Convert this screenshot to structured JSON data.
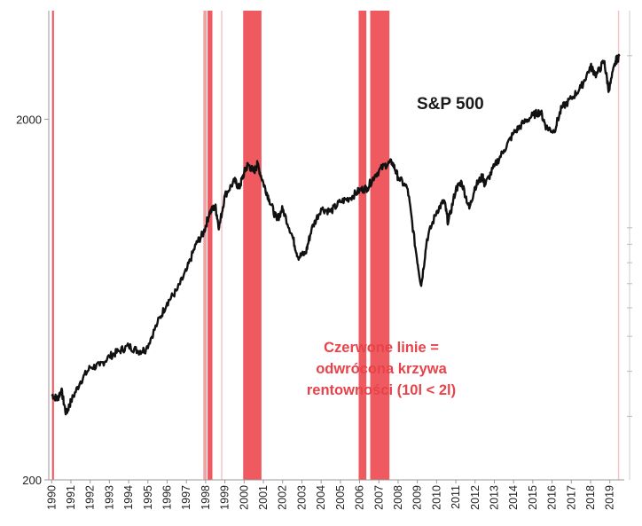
{
  "chart_data": {
    "type": "line",
    "title": "S&P 500",
    "annotation": [
      "Czerwone linie =",
      "odwrócona krzywa",
      "rentowności (10l < 2l)"
    ],
    "y_scale": "log",
    "ylim": [
      200,
      4000
    ],
    "y_ticks": [
      200,
      2000
    ],
    "y_tick_labels": [
      "200",
      "2000"
    ],
    "x_ticks": [
      "1990",
      "1991",
      "1992",
      "1993",
      "1994",
      "1995",
      "1996",
      "1997",
      "1998",
      "1999",
      "2000",
      "2001",
      "2002",
      "2003",
      "2004",
      "2005",
      "2006",
      "2007",
      "2008",
      "2009",
      "2010",
      "2011",
      "2012",
      "2013",
      "2014",
      "2015",
      "2016",
      "2017",
      "2018",
      "2019"
    ],
    "grid": false,
    "inversion_periods": [
      {
        "start": 1990.02,
        "end": 1990.12,
        "shade": "strong"
      },
      {
        "start": 1997.88,
        "end": 1998.05,
        "shade": "light"
      },
      {
        "start": 1998.1,
        "end": 1998.35,
        "shade": "strong"
      },
      {
        "start": 1998.8,
        "end": 1998.86,
        "shade": "faint"
      },
      {
        "start": 1999.95,
        "end": 2000.9,
        "shade": "strong"
      },
      {
        "start": 2005.95,
        "end": 2006.35,
        "shade": "strong"
      },
      {
        "start": 2006.55,
        "end": 2007.55,
        "shade": "strong"
      },
      {
        "start": 2019.42,
        "end": 2019.48,
        "shade": "faint"
      }
    ],
    "series": [
      {
        "values": [
          [
            1990.0,
            345
          ],
          [
            1990.3,
            335
          ],
          [
            1990.5,
            355
          ],
          [
            1990.75,
            305
          ],
          [
            1991.0,
            330
          ],
          [
            1991.5,
            375
          ],
          [
            1992.0,
            410
          ],
          [
            1992.5,
            415
          ],
          [
            1993.0,
            440
          ],
          [
            1993.5,
            455
          ],
          [
            1994.0,
            470
          ],
          [
            1994.5,
            455
          ],
          [
            1994.9,
            460
          ],
          [
            1995.5,
            545
          ],
          [
            1996.0,
            620
          ],
          [
            1996.5,
            670
          ],
          [
            1997.0,
            760
          ],
          [
            1997.5,
            900
          ],
          [
            1997.9,
            970
          ],
          [
            1998.2,
            1100
          ],
          [
            1998.5,
            1150
          ],
          [
            1998.7,
            1000
          ],
          [
            1999.0,
            1230
          ],
          [
            1999.5,
            1350
          ],
          [
            1999.75,
            1290
          ],
          [
            2000.0,
            1420
          ],
          [
            2000.2,
            1500
          ],
          [
            2000.5,
            1430
          ],
          [
            2000.7,
            1500
          ],
          [
            2001.0,
            1330
          ],
          [
            2001.3,
            1200
          ],
          [
            2001.7,
            1050
          ],
          [
            2002.0,
            1130
          ],
          [
            2002.5,
            950
          ],
          [
            2002.8,
            830
          ],
          [
            2003.2,
            850
          ],
          [
            2003.5,
            990
          ],
          [
            2004.0,
            1130
          ],
          [
            2004.5,
            1110
          ],
          [
            2005.0,
            1180
          ],
          [
            2005.5,
            1210
          ],
          [
            2006.0,
            1270
          ],
          [
            2006.4,
            1290
          ],
          [
            2006.8,
            1400
          ],
          [
            2007.3,
            1490
          ],
          [
            2007.7,
            1520
          ],
          [
            2008.0,
            1380
          ],
          [
            2008.5,
            1280
          ],
          [
            2008.9,
            880
          ],
          [
            2009.2,
            690
          ],
          [
            2009.5,
            930
          ],
          [
            2010.0,
            1110
          ],
          [
            2010.4,
            1190
          ],
          [
            2010.6,
            1030
          ],
          [
            2011.0,
            1280
          ],
          [
            2011.3,
            1340
          ],
          [
            2011.7,
            1130
          ],
          [
            2012.0,
            1300
          ],
          [
            2012.4,
            1390
          ],
          [
            2012.5,
            1310
          ],
          [
            2013.0,
            1480
          ],
          [
            2013.5,
            1640
          ],
          [
            2014.0,
            1830
          ],
          [
            2014.5,
            1950
          ],
          [
            2015.0,
            2050
          ],
          [
            2015.4,
            2100
          ],
          [
            2015.7,
            1900
          ],
          [
            2016.1,
            1850
          ],
          [
            2016.5,
            2150
          ],
          [
            2017.0,
            2280
          ],
          [
            2017.5,
            2450
          ],
          [
            2018.0,
            2800
          ],
          [
            2018.3,
            2650
          ],
          [
            2018.7,
            2900
          ],
          [
            2018.95,
            2400
          ],
          [
            2019.3,
            2900
          ],
          [
            2019.5,
            2990
          ]
        ]
      }
    ]
  },
  "colors": {
    "line": "#111111",
    "inversion_strong": "#ee5a5f",
    "inversion_light": "#f4a1a4",
    "inversion_faint": "#f7c5c7",
    "note": "#e8424a",
    "axis": "#999999"
  }
}
